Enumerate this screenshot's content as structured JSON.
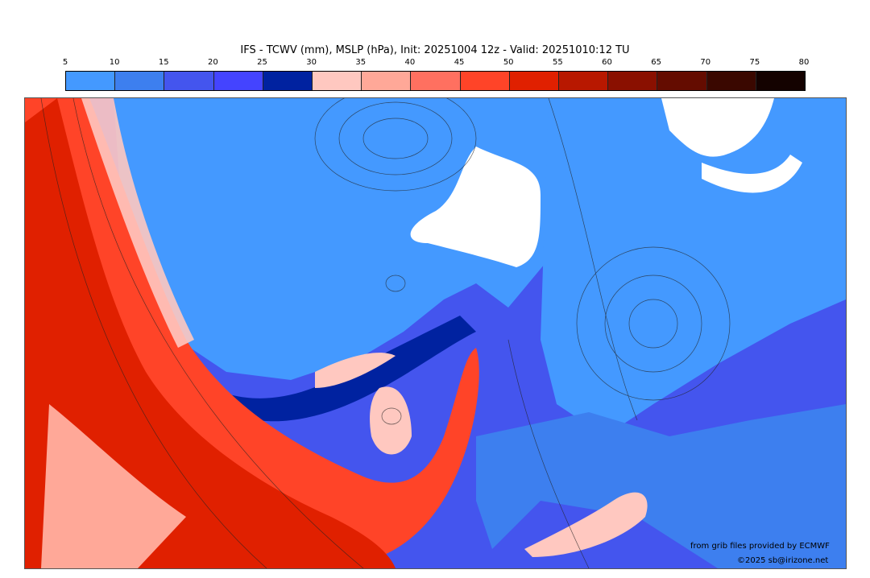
{
  "title": "IFS - TCWV (mm), MSLP (hPa), Init: 20251004 12z - Valid: 20251010:12 TU",
  "colorbar": {
    "ticks": [
      "5",
      "10",
      "15",
      "20",
      "25",
      "30",
      "35",
      "40",
      "45",
      "50",
      "55",
      "60",
      "65",
      "70",
      "75",
      "80"
    ],
    "colors": [
      "#4499ff",
      "#3d7fef",
      "#4455ee",
      "#4444ff",
      "#0022a0",
      "#ffc8c0",
      "#ffa898",
      "#ff7060",
      "#ff4428",
      "#e02000",
      "#b81800",
      "#8a1000",
      "#640c00",
      "#3a0800",
      "#140200"
    ]
  },
  "credits": {
    "source": "from grib files provided by ECMWF",
    "copyright": "©2025 sb@irizone.net"
  }
}
